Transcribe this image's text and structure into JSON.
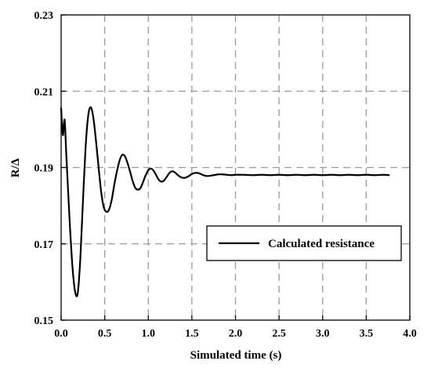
{
  "chart_data": {
    "type": "line",
    "title": "",
    "xlabel": "Simulated time (s)",
    "ylabel": "R/Δ",
    "xlim": [
      0.0,
      4.0
    ],
    "ylim": [
      0.15,
      0.23
    ],
    "x_ticks": [
      0.0,
      0.5,
      1.0,
      1.5,
      2.0,
      2.5,
      3.0,
      3.5,
      4.0
    ],
    "x_tick_labels": [
      "0.0",
      "0.5",
      "1.0",
      "1.5",
      "2.0",
      "2.5",
      "3.0",
      "3.5",
      "4.0"
    ],
    "y_ticks": [
      0.15,
      0.17,
      0.19,
      0.21,
      0.23
    ],
    "y_tick_labels": [
      "0.15",
      "0.17",
      "0.19",
      "0.21",
      "0.23"
    ],
    "grid": true,
    "legend_position": "lower-right",
    "series": [
      {
        "name": "Calculated resistance",
        "color": "#000000",
        "x": [
          0.0,
          0.02,
          0.04,
          0.06,
          0.08,
          0.1,
          0.13,
          0.16,
          0.19,
          0.22,
          0.25,
          0.28,
          0.31,
          0.34,
          0.37,
          0.4,
          0.43,
          0.46,
          0.49,
          0.52,
          0.55,
          0.58,
          0.61,
          0.64,
          0.67,
          0.7,
          0.73,
          0.76,
          0.79,
          0.82,
          0.85,
          0.88,
          0.91,
          0.94,
          0.97,
          1.0,
          1.03,
          1.06,
          1.09,
          1.12,
          1.15,
          1.18,
          1.21,
          1.24,
          1.27,
          1.3,
          1.34,
          1.38,
          1.42,
          1.46,
          1.5,
          1.54,
          1.58,
          1.62,
          1.66,
          1.7,
          1.75,
          1.8,
          1.85,
          1.9,
          1.95,
          2.0,
          2.05,
          2.1,
          2.2,
          2.3,
          2.4,
          2.5,
          2.6,
          2.7,
          2.8,
          2.9,
          3.0,
          3.1,
          3.2,
          3.3,
          3.4,
          3.5,
          3.6,
          3.7,
          3.76
        ],
        "y": [
          0.2055,
          0.1985,
          0.2025,
          0.193,
          0.184,
          0.175,
          0.164,
          0.1575,
          0.157,
          0.166,
          0.181,
          0.195,
          0.2035,
          0.2058,
          0.203,
          0.197,
          0.19,
          0.1835,
          0.1795,
          0.1784,
          0.179,
          0.1815,
          0.1855,
          0.189,
          0.1918,
          0.1933,
          0.193,
          0.1913,
          0.189,
          0.1865,
          0.1847,
          0.1842,
          0.1846,
          0.1862,
          0.188,
          0.1893,
          0.1897,
          0.1892,
          0.188,
          0.1868,
          0.1863,
          0.1866,
          0.1875,
          0.1885,
          0.189,
          0.1888,
          0.188,
          0.1874,
          0.1873,
          0.1877,
          0.1883,
          0.1886,
          0.1885,
          0.1881,
          0.1878,
          0.1878,
          0.188,
          0.1882,
          0.1882,
          0.1881,
          0.188,
          0.1881,
          0.1881,
          0.1881,
          0.188,
          0.1881,
          0.188,
          0.1881,
          0.188,
          0.1881,
          0.188,
          0.1881,
          0.188,
          0.1881,
          0.188,
          0.1881,
          0.188,
          0.1881,
          0.188,
          0.1881,
          0.188
        ]
      }
    ]
  }
}
